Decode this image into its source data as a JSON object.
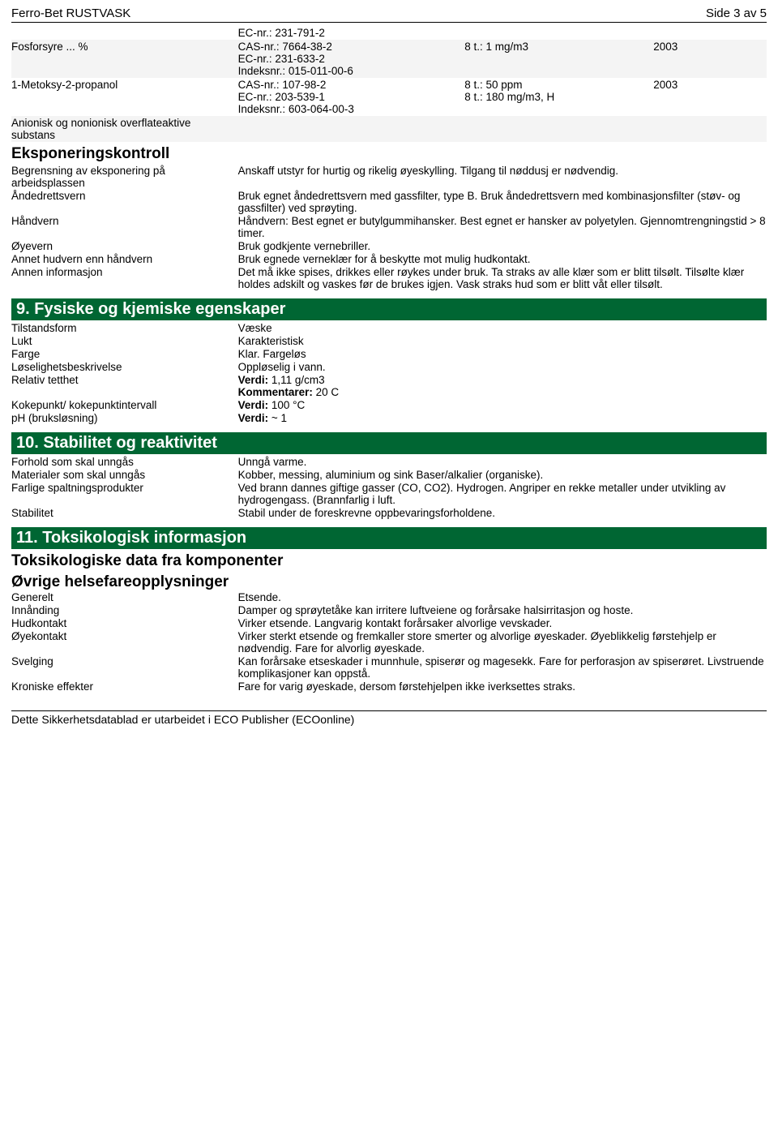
{
  "header": {
    "title": "Ferro-Bet RUSTVASK",
    "page": "Side 3 av 5"
  },
  "chem_rows": [
    {
      "name": "",
      "ids": [
        "EC-nr.: 231-791-2"
      ],
      "limit": "",
      "year": "",
      "alt": false
    },
    {
      "name": "Fosforsyre ... %",
      "ids": [
        "CAS-nr.: 7664-38-2",
        "EC-nr.: 231-633-2",
        "Indeksnr.: 015-011-00-6"
      ],
      "limit": "8 t.: 1 mg/m3",
      "year": "2003",
      "alt": true
    },
    {
      "name": "1-Metoksy-2-propanol",
      "ids": [
        "CAS-nr.: 107-98-2",
        "EC-nr.: 203-539-1",
        "Indeksnr.: 603-064-00-3"
      ],
      "limit": "8 t.: 50 ppm\n8 t.: 180 mg/m3, H",
      "year": "2003",
      "alt": false
    },
    {
      "name": "Anionisk og nonionisk overflateaktive substans",
      "ids": [],
      "limit": "",
      "year": "",
      "alt": true
    }
  ],
  "eksponeringskontroll": {
    "title": "Eksponeringskontroll",
    "rows": [
      {
        "k": "Begrensning av eksponering på arbeidsplassen",
        "v": "Anskaff utstyr for hurtig og rikelig øyeskylling. Tilgang til nøddusj er nødvendig."
      },
      {
        "k": "Åndedrettsvern",
        "v": "Bruk egnet åndedrettsvern med gassfilter, type B. Bruk åndedrettsvern med kombinasjonsfilter (støv- og gassfilter) ved sprøyting."
      },
      {
        "k": "Håndvern",
        "v": "Håndvern: Best egnet er butylgummihansker. Best egnet er hansker av polyetylen. Gjennomtrengningstid > 8 timer."
      },
      {
        "k": "Øyevern",
        "v": "Bruk godkjente vernebriller."
      },
      {
        "k": "Annet hudvern enn håndvern",
        "v": "Bruk egnede verneklær for å beskytte mot mulig hudkontakt."
      },
      {
        "k": "Annen informasjon",
        "v": "Det må ikke spises, drikkes eller røykes under bruk. Ta straks av alle klær som er blitt tilsølt. Tilsølte klær holdes adskilt og vaskes før de brukes igjen. Vask straks hud som er blitt våt eller tilsølt."
      }
    ]
  },
  "section9": {
    "title": "9. Fysiske og kjemiske egenskaper",
    "rows": [
      {
        "k": "Tilstandsform",
        "v": "Væske"
      },
      {
        "k": "Lukt",
        "v": "Karakteristisk"
      },
      {
        "k": "Farge",
        "v": "Klar. Fargeløs"
      },
      {
        "k": "Løselighetsbeskrivelse",
        "v": "Oppløselig i vann."
      },
      {
        "k": "Relativ tetthet",
        "v": "",
        "bold1": "Verdi:",
        "v1": " 1,11 g/cm3",
        "bold2": "Kommentarer:",
        "v2": " 20 C"
      },
      {
        "k": "Kokepunkt/ kokepunktintervall",
        "v": "",
        "bold1": "Verdi:",
        "v1": " 100 °C"
      },
      {
        "k": "pH (bruksløsning)",
        "v": "",
        "bold1": "Verdi:",
        "v1": " ~ 1"
      }
    ]
  },
  "section10": {
    "title": "10. Stabilitet og reaktivitet",
    "rows": [
      {
        "k": "Forhold som skal unngås",
        "v": "Unngå varme."
      },
      {
        "k": "Materialer som skal unngås",
        "v": "Kobber, messing, aluminium og sink Baser/alkalier (organiske)."
      },
      {
        "k": "Farlige spaltningsprodukter",
        "v": "Ved brann dannes giftige gasser (CO, CO2). Hydrogen. Angriper en rekke metaller under utvikling av hydrogengass. (Brannfarlig i luft."
      },
      {
        "k": "Stabilitet",
        "v": "Stabil under de foreskrevne oppbevaringsforholdene."
      }
    ]
  },
  "section11": {
    "title": "11. Toksikologisk informasjon",
    "sub1": "Toksikologiske data fra komponenter",
    "sub2": "Øvrige helsefareopplysninger",
    "rows": [
      {
        "k": "Generelt",
        "v": "Etsende."
      },
      {
        "k": "Innånding",
        "v": "Damper og sprøytetåke kan irritere luftveiene og forårsake halsirritasjon og hoste."
      },
      {
        "k": "Hudkontakt",
        "v": "Virker etsende. Langvarig kontakt forårsaker alvorlige vevskader."
      },
      {
        "k": "Øyekontakt",
        "v": "Virker sterkt etsende og fremkaller store smerter og alvorlige øyeskader. Øyeblikkelig førstehjelp er nødvendig. Fare for alvorlig øyeskade."
      },
      {
        "k": "Svelging",
        "v": "Kan forårsake etseskader i munnhule, spiserør og magesekk. Fare for perforasjon av spiserøret. Livstruende komplikasjoner kan oppstå."
      },
      {
        "k": "Kroniske effekter",
        "v": "Fare for varig øyeskade, dersom førstehjelpen ikke iverksettes straks."
      }
    ]
  },
  "footer": "Dette Sikkerhetsdatablad er utarbeidet i ECO Publisher (ECOonline)"
}
